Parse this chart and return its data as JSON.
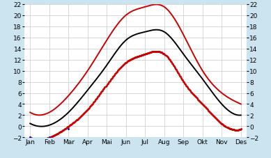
{
  "months": [
    "Jan",
    "Feb",
    "Mar",
    "Apr",
    "Mai",
    "Jun",
    "Jul",
    "Aug",
    "Sep",
    "Okt",
    "Nov",
    "Des"
  ],
  "mean_temp": [
    0.5,
    0.2,
    2.5,
    6.5,
    11.0,
    15.5,
    17.0,
    17.0,
    13.0,
    8.5,
    4.0,
    2.0
  ],
  "max_temp": [
    2.5,
    2.5,
    5.5,
    10.0,
    15.5,
    20.0,
    21.5,
    21.5,
    16.5,
    10.0,
    6.0,
    4.0
  ],
  "min_temp": [
    -2.0,
    -2.0,
    0.0,
    3.0,
    7.5,
    11.5,
    13.0,
    13.0,
    8.0,
    4.0,
    0.5,
    -0.5
  ],
  "blue_y": [
    -2.0,
    -2.0,
    -0.5
  ],
  "ylim": [
    -2,
    22
  ],
  "yticks": [
    -2,
    0,
    2,
    4,
    6,
    8,
    10,
    12,
    14,
    16,
    18,
    20,
    22
  ],
  "line_color_mean": "#000000",
  "line_color_max": "#cc0000",
  "line_color_min": "#cc0000",
  "line_color_blue": "#0000cc",
  "bg_color": "#ffffff",
  "grid_color": "#c8c8c8",
  "fig_bg": "#cce4ef"
}
